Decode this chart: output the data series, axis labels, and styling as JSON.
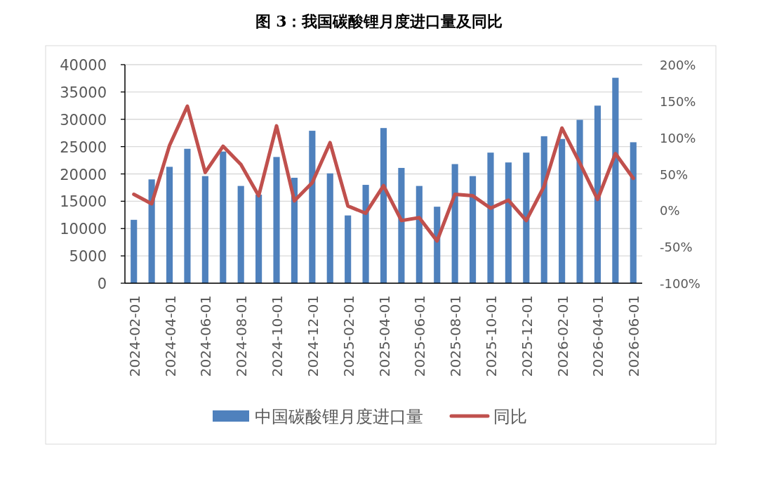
{
  "chart_data": {
    "type": "bar",
    "title": "图 3：我国碳酸锂月度进口量及同比",
    "categories": [
      "2024-02-01",
      null,
      "2024-04-01",
      null,
      "2024-06-01",
      null,
      "2024-08-01",
      null,
      "2024-10-01",
      null,
      "2024-12-01",
      null,
      "2025-02-01",
      null,
      "2025-04-01",
      null,
      "2025-06-01",
      null,
      "2025-08-01",
      null,
      "2025-10-01",
      null,
      "2025-12-01",
      null,
      "2026-02-01",
      null,
      "2026-04-01",
      null,
      "2026-06-01"
    ],
    "series": [
      {
        "name": "中国碳酸锂月度进口量",
        "color": "#4f81bd",
        "values": [
          11600,
          19000,
          21300,
          24600,
          19600,
          24100,
          17800,
          16200,
          23100,
          19300,
          27900,
          20100,
          12400,
          18000,
          28400,
          21100,
          17800,
          14000,
          21800,
          19600,
          23900,
          22100,
          23900,
          26900,
          26400,
          29900,
          32500,
          37600,
          25800
        ]
      },
      {
        "name": "同比",
        "type": "line",
        "axis": "y2",
        "color": "#c0504d",
        "values": [
          22,
          9,
          89,
          143,
          52,
          88,
          63,
          20,
          116,
          13,
          38,
          93,
          6,
          -4,
          34,
          -14,
          -10,
          -42,
          22,
          20,
          3,
          14,
          -14,
          33,
          113,
          65,
          15,
          78,
          44
        ]
      }
    ],
    "ylim": [
      0,
      40000
    ],
    "yticks": [
      0,
      5000,
      10000,
      15000,
      20000,
      25000,
      30000,
      35000,
      40000
    ],
    "y2lim": [
      -100,
      200
    ],
    "y2ticks": [
      {
        "value": -100,
        "label": "-100%"
      },
      {
        "value": -50,
        "label": "-50%"
      },
      {
        "value": 0,
        "label": "0%"
      },
      {
        "value": 50,
        "label": "50%"
      },
      {
        "value": 100,
        "label": "100%"
      },
      {
        "value": 150,
        "label": "150%"
      },
      {
        "value": 200,
        "label": "200%"
      }
    ],
    "grid": "y",
    "legend": "bottom",
    "marker": "none",
    "line_style": "solid"
  }
}
